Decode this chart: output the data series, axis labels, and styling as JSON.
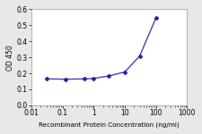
{
  "x": [
    0.03125,
    0.125,
    0.5,
    1,
    3,
    10,
    30,
    100
  ],
  "y": [
    0.165,
    0.163,
    0.165,
    0.168,
    0.183,
    0.208,
    0.308,
    0.546
  ],
  "line_color": "#4444aa",
  "marker_color": "#2222aa",
  "marker": "D",
  "marker_size": 2.5,
  "line_width": 1.0,
  "xlabel": "Recombinant Protein Concentration (ng/ml)",
  "ylabel": "OD 450",
  "xlim_log": [
    0.01,
    1000
  ],
  "ylim": [
    0,
    0.6
  ],
  "yticks": [
    0,
    0.1,
    0.2,
    0.3,
    0.4,
    0.5,
    0.6
  ],
  "xtick_major": [
    0.01,
    0.1,
    1,
    10,
    100,
    1000
  ],
  "xtick_labels": [
    "0.01",
    "0.1",
    "1",
    "10",
    "100",
    "1000"
  ],
  "bg_color": "#e8e8e8",
  "plot_bg_color": "#ffffff",
  "xlabel_fontsize": 5.2,
  "ylabel_fontsize": 5.5,
  "tick_fontsize": 5.5,
  "title_fontsize": 6
}
